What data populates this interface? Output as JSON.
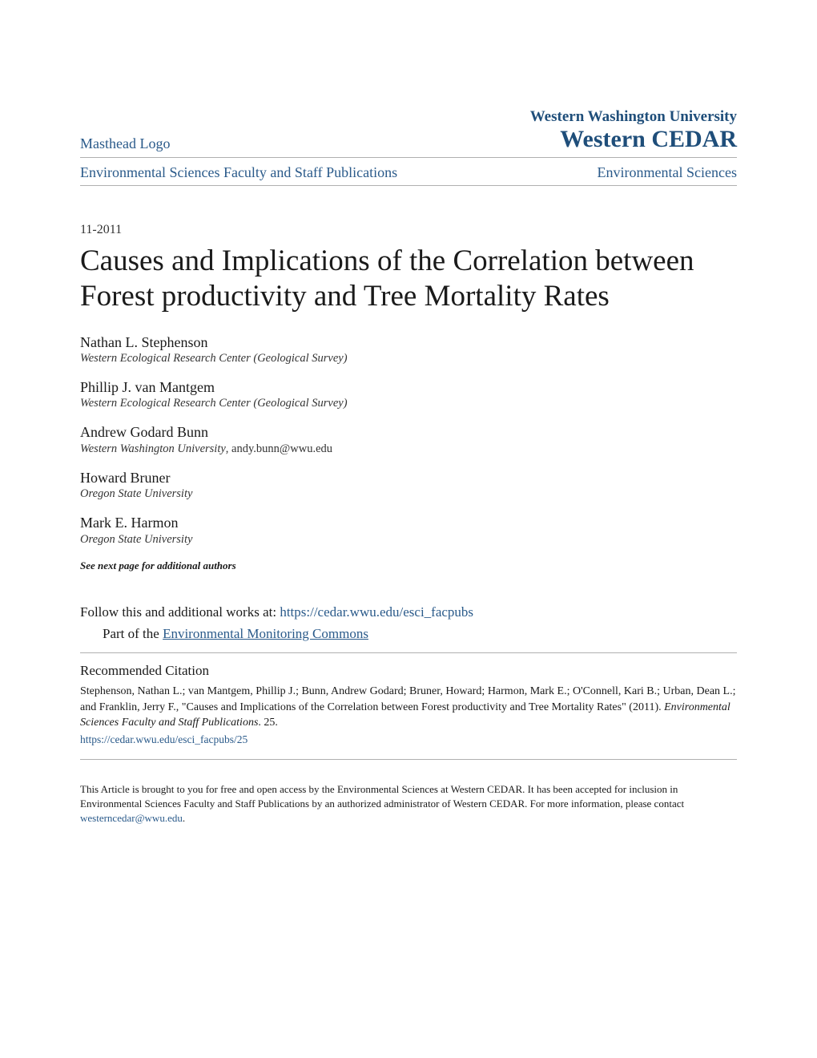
{
  "header": {
    "masthead": "Masthead Logo",
    "institution": "Western Washington University",
    "repository": "Western CEDAR"
  },
  "breadcrumb": {
    "left": "Environmental Sciences Faculty and Staff Publications",
    "right": "Environmental Sciences"
  },
  "date": "11-2011",
  "title": "Causes and Implications of the Correlation between Forest productivity and Tree Mortality Rates",
  "authors": [
    {
      "name": "Nathan L. Stephenson",
      "affiliation": "Western Ecological Research Center (Geological Survey)",
      "email": ""
    },
    {
      "name": "Phillip J. van Mantgem",
      "affiliation": "Western Ecological Research Center (Geological Survey)",
      "email": ""
    },
    {
      "name": "Andrew Godard Bunn",
      "affiliation": "Western Washington University",
      "email": ", andy.bunn@wwu.edu"
    },
    {
      "name": "Howard Bruner",
      "affiliation": "Oregon State University",
      "email": ""
    },
    {
      "name": "Mark E. Harmon",
      "affiliation": "Oregon State University",
      "email": ""
    }
  ],
  "see_next": "See next page for additional authors",
  "follow": {
    "prefix": "Follow this and additional works at: ",
    "url": "https://cedar.wwu.edu/esci_facpubs",
    "part_prefix": "Part of the ",
    "part_link": "Environmental Monitoring Commons"
  },
  "citation": {
    "heading": "Recommended Citation",
    "body_pre": "Stephenson, Nathan L.; van Mantgem, Phillip J.; Bunn, Andrew Godard; Bruner, Howard; Harmon, Mark E.; O'Connell, Kari B.; Urban, Dean L.; and Franklin, Jerry F., \"Causes and Implications of the Correlation between Forest productivity and Tree Mortality Rates\" (2011). ",
    "body_series": "Environmental Sciences Faculty and Staff Publications",
    "body_post": ". 25.",
    "link": "https://cedar.wwu.edu/esci_facpubs/25"
  },
  "footer": {
    "text": "This Article is brought to you for free and open access by the Environmental Sciences at Western CEDAR. It has been accepted for inclusion in Environmental Sciences Faculty and Staff Publications by an authorized administrator of Western CEDAR. For more information, please contact ",
    "email": "westerncedar@wwu.edu",
    "period": "."
  },
  "colors": {
    "link": "#2a5a8a",
    "heading": "#1f4e7a",
    "text": "#1a1a1a",
    "divider": "#b0b0b0",
    "background": "#ffffff"
  }
}
